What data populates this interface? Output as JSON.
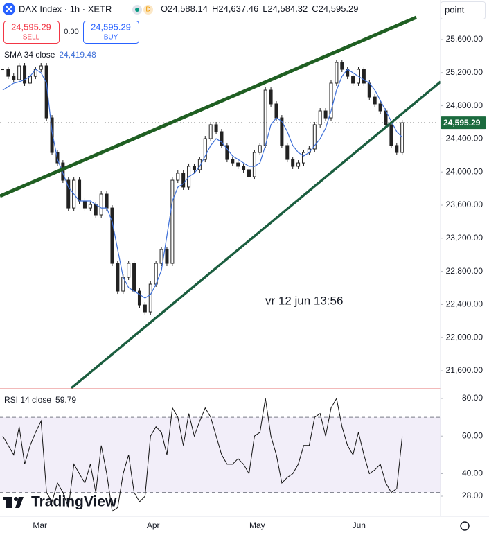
{
  "header": {
    "open_label": "O",
    "open": "24,588.14",
    "high_label": "H",
    "high": "24,637.46",
    "low_label": "L",
    "low": "24,584.32",
    "close_label": "C",
    "close": "24,595.29",
    "badge": "D",
    "sell_price": "24,595.29",
    "sell": "SELL",
    "spread": "0.00",
    "buy_price": "24,595.29",
    "buy": "BUY",
    "scale_mode": "point",
    "sma_value": "24,419.48",
    "rsi_value": "59.79",
    "brand": "TradingView"
  },
  "chart_data": [
    {
      "type": "candlestick",
      "annotation": "vr 12 jun 13:56",
      "price_label": "24,595.29",
      "xlim": [
        -0.5,
        80
      ],
      "xticks": [
        {
          "value": 6.8,
          "label": "Mar"
        },
        {
          "value": 27.5,
          "label": "Apr"
        },
        {
          "value": 46.5,
          "label": "May"
        },
        {
          "value": 65.1,
          "label": "Jun"
        }
      ],
      "ylim": [
        21391,
        26077
      ],
      "yticks": [
        {
          "value": 21600,
          "label": "21,600.00"
        },
        {
          "value": 22000,
          "label": "22,000.00"
        },
        {
          "value": 22400,
          "label": "22,400.00"
        },
        {
          "value": 22800,
          "label": "22,800.00"
        },
        {
          "value": 23200,
          "label": "23,200.00"
        },
        {
          "value": 23600,
          "label": "23,600.00"
        },
        {
          "value": 24000,
          "label": "24,000.00"
        },
        {
          "value": 24400,
          "label": "24,400.00"
        },
        {
          "value": 24800,
          "label": "24,800.00"
        },
        {
          "value": 25200,
          "label": "25,200.00"
        },
        {
          "value": 25600,
          "label": "25,600.00"
        }
      ],
      "grid": false,
      "series": [
        {
          "name": "DAX Index · 1h · XETR",
          "color": "#222222",
          "values": [
            25240,
            25156,
            25115,
            25282,
            25073,
            25156,
            25240,
            25282,
            24654,
            24236,
            24110,
            23901,
            23566,
            23901,
            23650,
            23566,
            23608,
            23483,
            23734,
            23566,
            22897,
            22562,
            22730,
            22897,
            22562,
            22395,
            22311,
            22646,
            22897,
            23064,
            22897,
            23901,
            23985,
            23818,
            24069,
            24027,
            24152,
            24403,
            24571,
            24487,
            24320,
            24152,
            24110,
            24069,
            24027,
            23943,
            24236,
            24320,
            24989,
            24822,
            24654,
            24320,
            24152,
            24069,
            24110,
            24236,
            24278,
            24571,
            24738,
            24654,
            25073,
            25324,
            25240,
            25156,
            25073,
            25240,
            25073,
            24905,
            24822,
            24738,
            24571,
            24320,
            24236,
            24595.29
          ]
        },
        {
          "name": "SMA 34 close",
          "color": "#3d6fd8",
          "values": [
            24989,
            25031,
            25073,
            25090,
            25115,
            25156,
            25240,
            25198,
            25073,
            24487,
            24152,
            23985,
            23818,
            23734,
            23650,
            23650,
            23650,
            23608,
            23566,
            23566,
            23399,
            23064,
            22730,
            22604,
            22562,
            22521,
            22479,
            22521,
            22646,
            22813,
            23232,
            23650,
            23818,
            23859,
            23943,
            23985,
            24069,
            24194,
            24320,
            24403,
            24362,
            24278,
            24194,
            24152,
            24110,
            24069,
            24069,
            24110,
            24320,
            24571,
            24654,
            24613,
            24487,
            24320,
            24236,
            24194,
            24236,
            24320,
            24403,
            24529,
            24738,
            24989,
            25156,
            25240,
            25198,
            25156,
            25115,
            25073,
            24989,
            24864,
            24738,
            24613,
            24487,
            24419.48
          ]
        }
      ]
    },
    {
      "type": "line",
      "xlim": [
        -0.5,
        80
      ],
      "ylim": [
        17.3,
        84.8
      ],
      "yticks": [
        {
          "value": 28,
          "label": "28.00"
        },
        {
          "value": 40,
          "label": "40.00"
        },
        {
          "value": 60,
          "label": "60.00"
        },
        {
          "value": 80,
          "label": "80.00"
        }
      ],
      "band": [
        30,
        70
      ],
      "band_color": "#7e57c2",
      "series": [
        {
          "name": "RSI 14 close",
          "color": "#111111",
          "values": [
            60,
            55,
            50,
            65,
            45,
            55,
            62,
            68,
            30,
            25,
            35,
            30,
            22,
            45,
            40,
            35,
            45,
            30,
            55,
            40,
            20,
            22,
            40,
            50,
            30,
            25,
            28,
            60,
            65,
            62,
            50,
            75,
            70,
            55,
            72,
            60,
            68,
            75,
            70,
            60,
            50,
            45,
            45,
            48,
            45,
            40,
            60,
            62,
            80,
            60,
            50,
            35,
            38,
            40,
            45,
            55,
            55,
            70,
            72,
            60,
            75,
            80,
            65,
            55,
            50,
            62,
            50,
            40,
            42,
            45,
            35,
            30,
            32,
            59.79
          ]
        }
      ]
    }
  ]
}
